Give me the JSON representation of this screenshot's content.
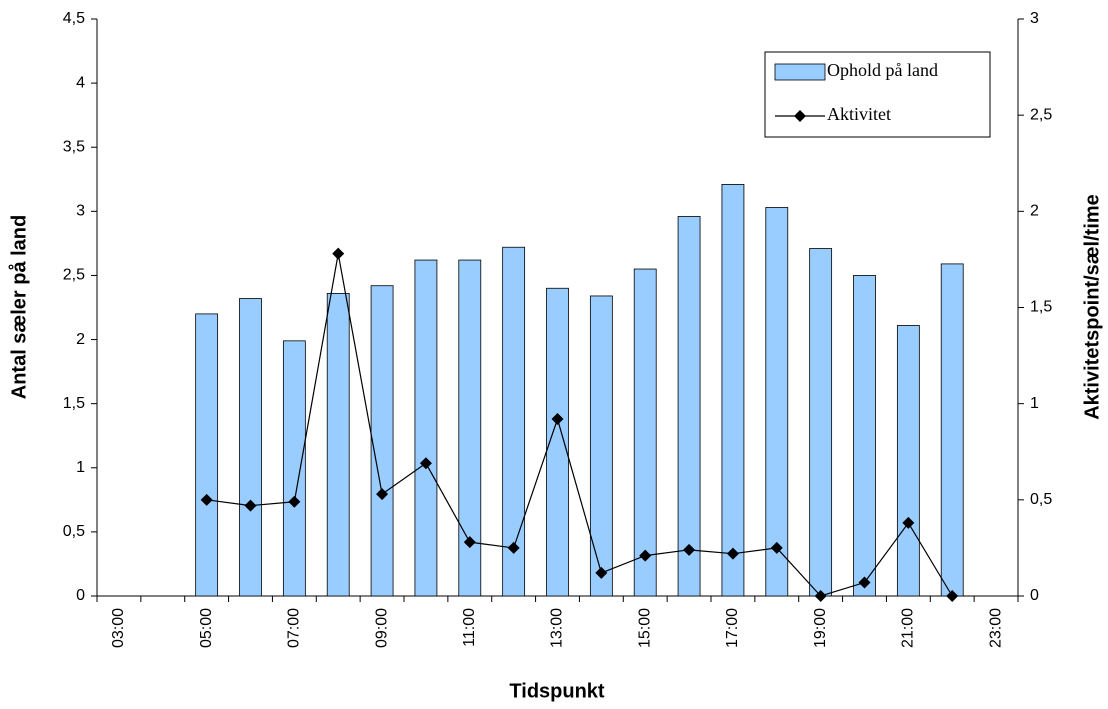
{
  "chart_data": {
    "type": "bar-line",
    "x_label": "Tidspunkt",
    "y_label": "Antal sæler på land",
    "y2_label": "Aktivitetspoint/sæl/time",
    "categories": [
      "03:00",
      null,
      "05:00",
      null,
      "07:00",
      null,
      "09:00",
      null,
      "11:00",
      null,
      "13:00",
      null,
      "15:00",
      null,
      "17:00",
      null,
      "19:00",
      null,
      "21:00",
      null,
      "23:00"
    ],
    "series": [
      {
        "name": "Ophold på land",
        "type": "bar",
        "color": "#99ccff",
        "axis": "y",
        "values": [
          null,
          null,
          2.2,
          2.32,
          1.99,
          2.36,
          2.42,
          2.62,
          2.62,
          2.72,
          2.4,
          2.34,
          2.55,
          2.96,
          3.21,
          3.03,
          2.71,
          2.5,
          2.11,
          2.59,
          null
        ]
      },
      {
        "name": "Aktivitet",
        "type": "line",
        "color": "#000000",
        "axis": "y2",
        "values": [
          null,
          null,
          0.5,
          0.47,
          0.49,
          1.78,
          0.53,
          0.69,
          0.28,
          0.25,
          0.92,
          0.12,
          0.21,
          0.24,
          0.22,
          0.25,
          0,
          0.07,
          0.38,
          0,
          null
        ]
      }
    ],
    "ylim": [
      0,
      4.5
    ],
    "yticks": [
      0,
      {
        "value": 0.5,
        "label": "0,5"
      },
      1,
      {
        "value": 1.5,
        "label": "1,5"
      },
      2,
      {
        "value": 2.5,
        "label": "2,5"
      },
      3,
      {
        "value": 3.5,
        "label": "3,5"
      },
      4,
      {
        "value": 4.5,
        "label": "4,5"
      }
    ],
    "y2lim": [
      0,
      3
    ],
    "y2ticks": [
      0,
      {
        "value": 0.5,
        "label": "0,5"
      },
      1,
      {
        "value": 1.5,
        "label": "1,5"
      },
      2,
      {
        "value": 2.5,
        "label": "2,5"
      },
      3
    ],
    "grid": false,
    "legend": "top-right"
  }
}
